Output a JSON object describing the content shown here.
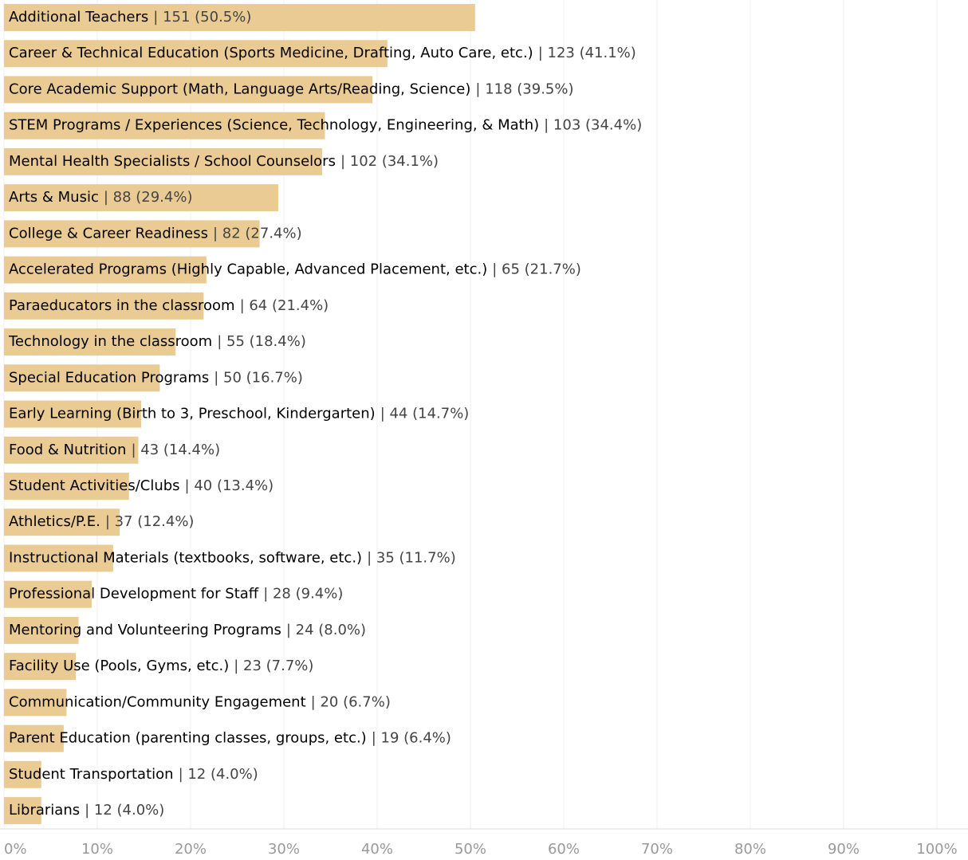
{
  "chart_data": {
    "type": "bar",
    "orientation": "horizontal",
    "categories": [
      "Additional Teachers",
      "Career & Technical Education (Sports Medicine, Drafting, Auto Care, etc.)",
      "Core Academic Support (Math, Language Arts/Reading, Science)",
      "STEM Programs / Experiences (Science, Technology, Engineering, & Math)",
      "Mental Health Specialists / School Counselors",
      "Arts & Music",
      "College & Career Readiness",
      "Accelerated Programs (Highly Capable, Advanced Placement, etc.)",
      "Paraeducators in the classroom",
      "Technology in the classroom",
      "Special Education Programs",
      "Early Learning (Birth to 3, Preschool, Kindergarten)",
      "Food & Nutrition",
      "Student Activities/Clubs",
      "Athletics/P.E.",
      "Instructional Materials (textbooks, software, etc.)",
      "Professional Development for Staff",
      "Mentoring and Volunteering Programs",
      "Facility Use (Pools, Gyms, etc.)",
      "Communication/Community Engagement",
      "Parent Education (parenting classes, groups, etc.)",
      "Student Transportation",
      "Librarians"
    ],
    "values": [
      50.5,
      41.1,
      39.5,
      34.4,
      34.1,
      29.4,
      27.4,
      21.7,
      21.4,
      18.4,
      16.7,
      14.7,
      14.4,
      13.4,
      12.4,
      11.7,
      9.4,
      8.0,
      7.7,
      6.7,
      6.4,
      4.0,
      4.0
    ],
    "value_labels": [
      "| 151 (50.5%)",
      "| 123 (41.1%)",
      "| 118 (39.5%)",
      "| 103 (34.4%)",
      "| 102 (34.1%)",
      "| 88 (29.4%)",
      "| 82 (27.4%)",
      "| 65 (21.7%)",
      "| 64 (21.4%)",
      "| 55 (18.4%)",
      "| 50 (16.7%)",
      "| 44 (14.7%)",
      "| 43 (14.4%)",
      "| 40 (13.4%)",
      "| 37 (12.4%)",
      "| 35 (11.7%)",
      "| 28 (9.4%)",
      "| 24 (8.0%)",
      "| 23 (7.7%)",
      "| 20 (6.7%)",
      "| 19 (6.4%)",
      "| 12 (4.0%)",
      "| 12 (4.0%)"
    ],
    "color": "#ebcb94",
    "xlim": [
      0,
      100
    ],
    "xticks": [
      {
        "value": 0,
        "label": "0%"
      },
      {
        "value": 10,
        "label": "10%"
      },
      {
        "value": 20,
        "label": "20%"
      },
      {
        "value": 30,
        "label": "30%"
      },
      {
        "value": 40,
        "label": "40%"
      },
      {
        "value": 50,
        "label": "50%"
      },
      {
        "value": 60,
        "label": "60%"
      },
      {
        "value": 70,
        "label": "70%"
      },
      {
        "value": 80,
        "label": "80%"
      },
      {
        "value": 90,
        "label": "90%"
      },
      {
        "value": 100,
        "label": "100%"
      }
    ],
    "grid": true
  }
}
